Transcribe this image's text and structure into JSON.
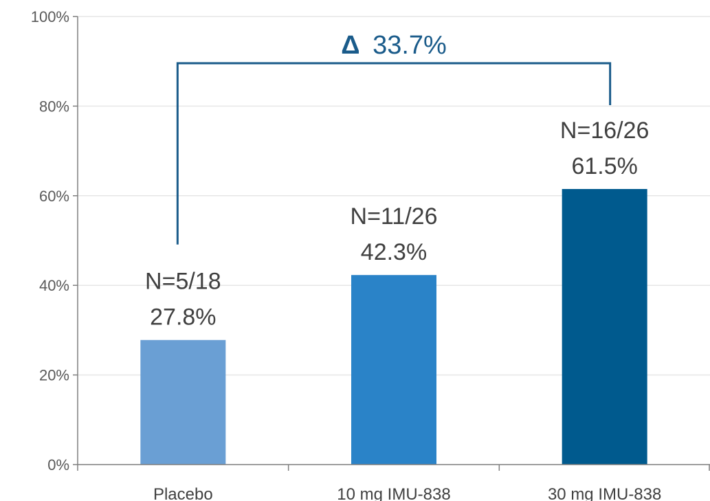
{
  "chart_data": {
    "type": "bar",
    "categories": [
      "Placebo",
      "10 mg IMU-838",
      "30 mg IMU-838"
    ],
    "values": [
      27.8,
      42.3,
      61.5
    ],
    "counts": [
      "N=5/18",
      "N=11/26",
      "N=16/26"
    ],
    "value_labels": [
      "27.8%",
      "42.3%",
      "61.5%"
    ],
    "bar_colors": [
      "#6a9fd4",
      "#2a83c8",
      "#005a8e"
    ],
    "ylim": [
      0,
      100
    ],
    "yticks": [
      0,
      20,
      40,
      60,
      80,
      100
    ],
    "ytick_labels": [
      "0%",
      "20%",
      "40%",
      "60%",
      "80%",
      "100%"
    ],
    "grid": true,
    "title": "",
    "xlabel": "",
    "ylabel": "",
    "annotation": {
      "symbol": "Δ",
      "value": "33.7%",
      "from_category": "Placebo",
      "to_category": "30 mg IMU-838",
      "color": "#1a5b8a"
    }
  }
}
